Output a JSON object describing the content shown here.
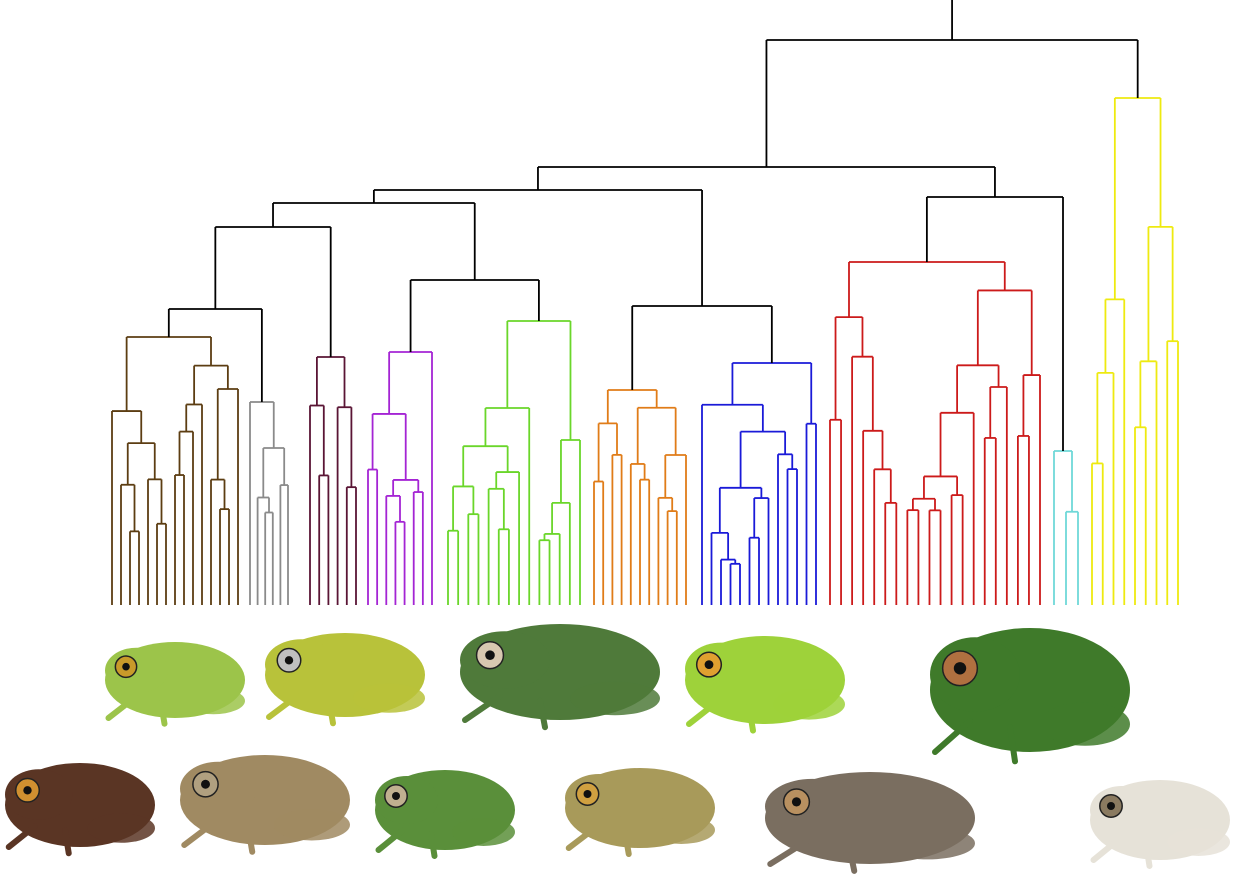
{
  "diagram": {
    "type": "phylogenetic-tree",
    "backbone_color": "#000000",
    "clades": [
      {
        "color": "#5c3d12",
        "leaves": 15
      },
      {
        "color": "#8a8a8a",
        "leaves": 6
      },
      {
        "color": "#5a1535",
        "leaves": 6
      },
      {
        "color": "#a424d4",
        "leaves": 8
      },
      {
        "color": "#6ad62a",
        "leaves": 14
      },
      {
        "color": "#e07c18",
        "leaves": 11
      },
      {
        "color": "#1a1ad8",
        "leaves": 13
      },
      {
        "color": "#cc1a1a",
        "leaves": 20
      },
      {
        "color": "#6fd8d8",
        "leaves": 3
      },
      {
        "color": "#eeea10",
        "leaves": 9
      }
    ]
  },
  "photos": [
    {
      "name": "frog-light-green-small",
      "body": "#9cc44a",
      "eye": "#c89a2a"
    },
    {
      "name": "frog-yellow-spotted",
      "body": "#b8c23a",
      "eye": "#c0c0c0"
    },
    {
      "name": "frog-dark-green-large",
      "body": "#4f7a3a",
      "eye": "#d8c8b0"
    },
    {
      "name": "frog-lime-green",
      "body": "#9ed23a",
      "eye": "#e0a030"
    },
    {
      "name": "frog-green-purple-spots",
      "body": "#3f7a2a",
      "eye": "#b07040"
    },
    {
      "name": "frog-brown-dark",
      "body": "#5a3524",
      "eye": "#d09030"
    },
    {
      "name": "frog-tan",
      "body": "#a08a62",
      "eye": "#b0a080"
    },
    {
      "name": "frog-green-small",
      "body": "#5a8f3a",
      "eye": "#c0b090"
    },
    {
      "name": "frog-olive-tan",
      "body": "#a89a5a",
      "eye": "#d0a040"
    },
    {
      "name": "frog-grey-brown",
      "body": "#7a6e60",
      "eye": "#b89060"
    },
    {
      "name": "frog-white-mottled",
      "body": "#e6e2d8",
      "eye": "#8a7a60"
    }
  ]
}
